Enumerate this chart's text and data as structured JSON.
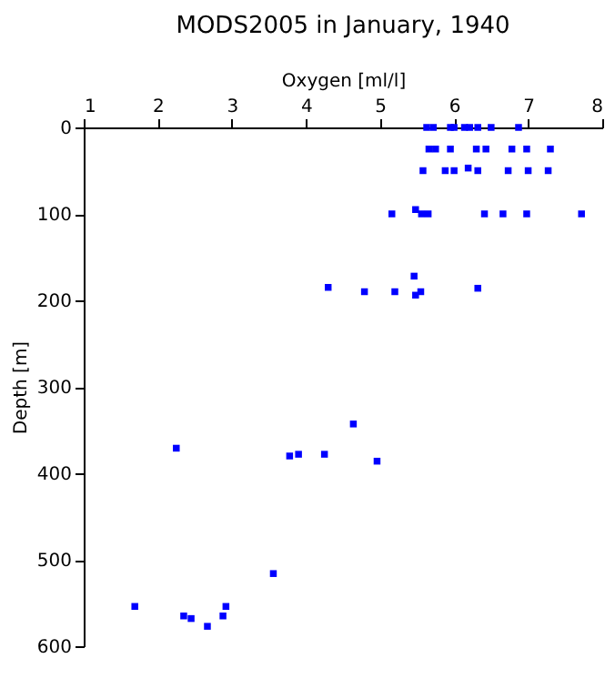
{
  "chart_data": {
    "type": "scatter",
    "title": "MODS2005 in January, 1940",
    "xlabel": "Oxygen [ml/l]",
    "ylabel": "Depth [m]",
    "x": [
      5.63,
      5.72,
      5.95,
      6.0,
      6.14,
      6.21,
      6.32,
      6.5,
      6.87,
      5.66,
      5.75,
      5.95,
      6.3,
      6.43,
      6.78,
      6.98,
      7.3,
      5.58,
      5.88,
      6.0,
      6.19,
      6.32,
      6.73,
      7.0,
      7.27,
      5.16,
      5.48,
      5.56,
      5.65,
      6.41,
      6.66,
      6.98,
      7.72,
      5.46,
      4.3,
      6.32,
      4.79,
      5.2,
      5.55,
      5.48,
      2.25,
      3.78,
      3.9,
      4.25,
      4.64,
      4.96,
      1.69,
      2.35,
      2.45,
      2.67,
      2.88,
      2.92,
      3.56
    ],
    "series": [
      {
        "color": "#0000ff",
        "values": [
          0,
          0,
          0,
          0,
          0,
          0,
          0,
          0,
          0,
          25,
          25,
          25,
          25,
          25,
          25,
          25,
          25,
          50,
          50,
          50,
          47,
          50,
          50,
          50,
          50,
          100,
          95,
          100,
          100,
          100,
          100,
          100,
          100,
          172,
          185,
          186,
          190,
          190,
          190,
          194,
          371,
          380,
          378,
          378,
          343,
          386,
          554,
          565,
          568,
          577,
          565,
          554,
          516
        ]
      }
    ],
    "xlim": [
      1,
      8
    ],
    "xticks": [
      1,
      2,
      3,
      4,
      5,
      6,
      7,
      8
    ],
    "ylim": [
      600,
      0
    ],
    "yticks": [
      0,
      100,
      200,
      300,
      400,
      500,
      600
    ],
    "marker": "square",
    "grid": false
  }
}
